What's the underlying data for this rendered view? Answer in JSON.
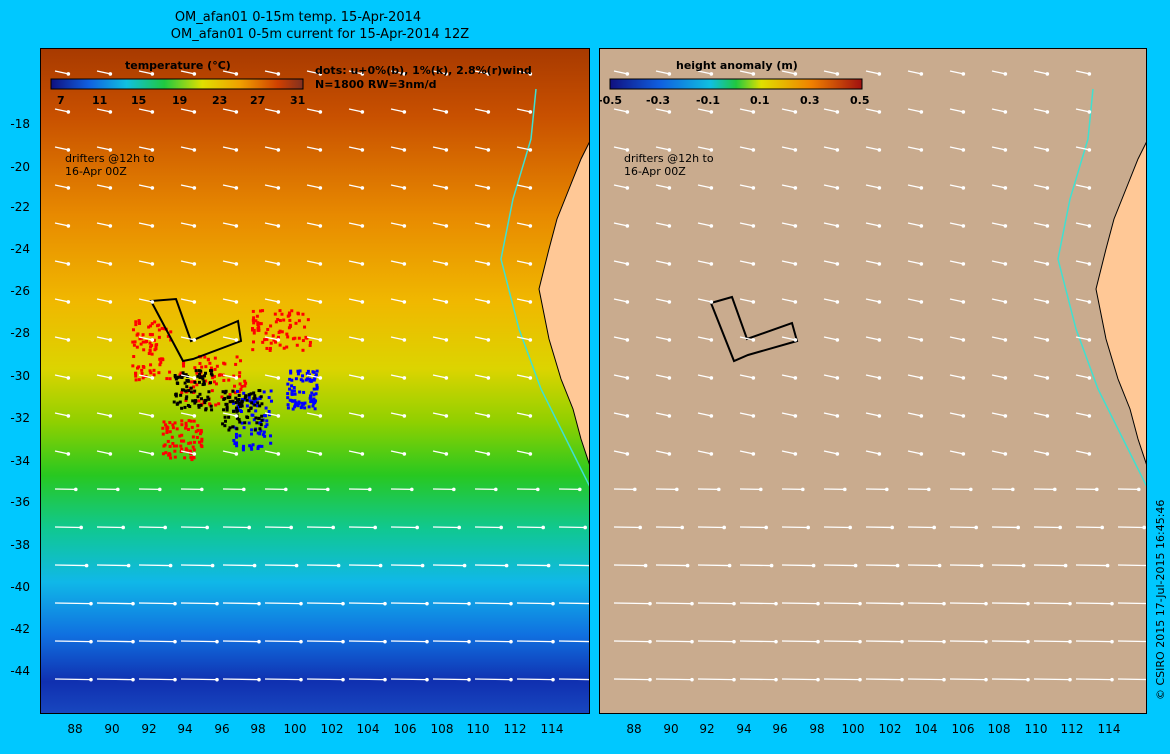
{
  "header": {
    "title_line1": "OM_afan01 0-15m temp. 15-Apr-2014",
    "title_line2": "OM_afan01 0-5m current for 15-Apr-2014 12Z"
  },
  "left_panel": {
    "colorbar_title": "temperature (°C)",
    "colorbar_ticks": [
      "7",
      "11",
      "15",
      "19",
      "23",
      "27",
      "31"
    ],
    "dots_legend_line1": "dots: u+0%(b), 1%(k), 2.8%(r)wind",
    "dots_legend_line2": "N=1800 RW=3nm/d",
    "drifters_line1": "drifters @12h to",
    "drifters_line2": "16-Apr 00Z"
  },
  "right_panel": {
    "colorbar_title": "height anomaly (m)",
    "colorbar_ticks": [
      "-0.5",
      "-0.3",
      "-0.1",
      "0.1",
      "0.3",
      "0.5"
    ],
    "drifters_line1": "drifters @12h to",
    "drifters_line2": "16-Apr 00Z"
  },
  "axes": {
    "y_ticks": [
      "-18",
      "-20",
      "-22",
      "-24",
      "-26",
      "-28",
      "-30",
      "-32",
      "-34",
      "-36",
      "-38",
      "-40",
      "-42",
      "-44"
    ],
    "x_ticks": [
      "88",
      "90",
      "92",
      "94",
      "96",
      "98",
      "100",
      "102",
      "104",
      "106",
      "108",
      "110",
      "112",
      "114"
    ]
  },
  "credit": "© CSIRO 2015   17-Jul-2015 16:45:46",
  "colors": {
    "background": "#00c8ff",
    "land": "#ffc896",
    "ocean_height": "#c9ab8e",
    "drifter_marks": "#ff00ff",
    "coast_contour": "#40e0d0"
  }
}
